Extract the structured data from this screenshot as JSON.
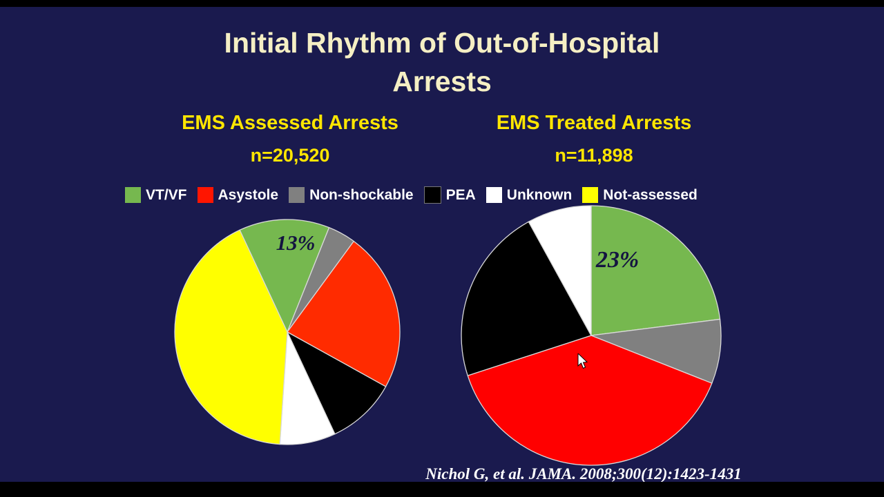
{
  "slide": {
    "title_line1": "Initial Rhythm of Out-of-Hospital",
    "title_line2": "Arrests",
    "left_header": "EMS Assessed Arrests",
    "left_n": "n=20,520",
    "right_header": "EMS Treated Arrests",
    "right_n": "n=11,898",
    "citation": "Nichol  G, et al. JAMA. 2008;300(12):1423-1431",
    "background_color": "#1a1a4e",
    "title_color": "#f5efc4",
    "header_color": "#ffe600"
  },
  "legend": {
    "items": [
      {
        "label": "VT/VF",
        "color": "#76b84f"
      },
      {
        "label": "Asystole",
        "color": "#ff1500"
      },
      {
        "label": "Non-shockable",
        "color": "#808080"
      },
      {
        "label": "PEA",
        "color": "#000000"
      },
      {
        "label": "Unknown",
        "color": "#ffffff"
      },
      {
        "label": "Not-assessed",
        "color": "#ffff00"
      }
    ]
  },
  "chart_data": [
    {
      "type": "pie",
      "title": "EMS Assessed Arrests",
      "n": 20520,
      "data_label": "13%",
      "start_angle_deg": -25,
      "slices": [
        {
          "name": "VT/VF",
          "value": 13,
          "color": "#76b84f"
        },
        {
          "name": "Non-shockable",
          "value": 4,
          "color": "#808080"
        },
        {
          "name": "Asystole",
          "value": 23,
          "color": "#ff2b00"
        },
        {
          "name": "PEA",
          "value": 10,
          "color": "#000000"
        },
        {
          "name": "Unknown",
          "value": 8,
          "color": "#ffffff"
        },
        {
          "name": "Not-assessed",
          "value": 42,
          "color": "#ffff00"
        }
      ]
    },
    {
      "type": "pie",
      "title": "EMS Treated Arrests",
      "n": 11898,
      "data_label": "23%",
      "start_angle_deg": 0,
      "slices": [
        {
          "name": "VT/VF",
          "value": 23,
          "color": "#76b84f"
        },
        {
          "name": "Non-shockable",
          "value": 8,
          "color": "#808080"
        },
        {
          "name": "Asystole",
          "value": 39,
          "color": "#ff0000"
        },
        {
          "name": "PEA",
          "value": 22,
          "color": "#000000"
        },
        {
          "name": "Unknown",
          "value": 8,
          "color": "#ffffff"
        }
      ]
    }
  ],
  "toolbar": {
    "buttons": [
      {
        "name": "previous-slide",
        "glyph": "◂"
      },
      {
        "name": "next-slide",
        "glyph": "▸"
      },
      {
        "name": "pen",
        "glyph": "✎"
      },
      {
        "name": "all-slides",
        "glyph": "❐"
      },
      {
        "name": "zoom",
        "glyph": "⌕"
      },
      {
        "name": "more-options",
        "glyph": "⋯"
      }
    ]
  }
}
